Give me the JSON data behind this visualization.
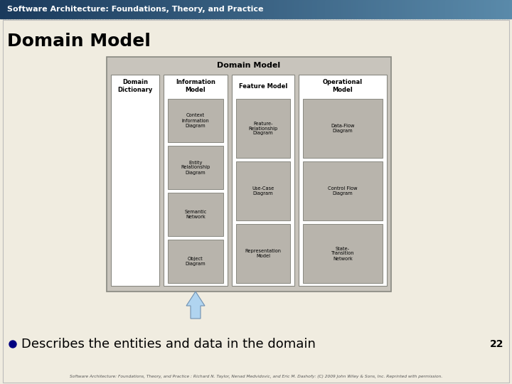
{
  "bg_color": "#ddd8cc",
  "header_bg_left": "#1a3a5c",
  "header_bg_right": "#5a8aaa",
  "header_text": "Software Architecture: Foundations, Theory, and Practice",
  "header_text_color": "#ffffff",
  "slide_title": "Domain Model",
  "slide_title_color": "#000000",
  "bullet_text": "Describes the entities and data in the domain",
  "bullet_color": "#000080",
  "slide_number": "22",
  "footer_text": "Software Architecture: Foundations, Theory, and Practice : Richard N. Taylor, Nenad Medvidovic, and Eric M. Dashofy: (C) 2009 John Wiley & Sons, Inc. Reprinted with permission.",
  "diagram_bg": "#c8c4bc",
  "diagram_title": "Domain Model",
  "inner_bg": "#ffffff",
  "sub_box_bg": "#b8b4ac",
  "sub_box_border": "#888880",
  "columns": [
    {
      "title": "Domain\nDictionary",
      "items": []
    },
    {
      "title": "Information\nModel",
      "items": [
        "Context\nInformation\nDiagram",
        "Entity\nRelationship\nDiagram",
        "Semantic\nNetwork",
        "Object\nDiagram"
      ]
    },
    {
      "title": "Feature Model",
      "items": [
        "Feature-\nRelationship\nDiagram",
        "Use-Case\nDiagram",
        "Representation\nModel"
      ]
    },
    {
      "title": "Operational\nModel",
      "items": [
        "Data-Flow\nDiagram",
        "Control Flow\nDiagram",
        "State-\nTransition\nNetwork"
      ]
    }
  ],
  "arrow_color": "#b0d4f0",
  "arrow_edge_color": "#7090b0"
}
